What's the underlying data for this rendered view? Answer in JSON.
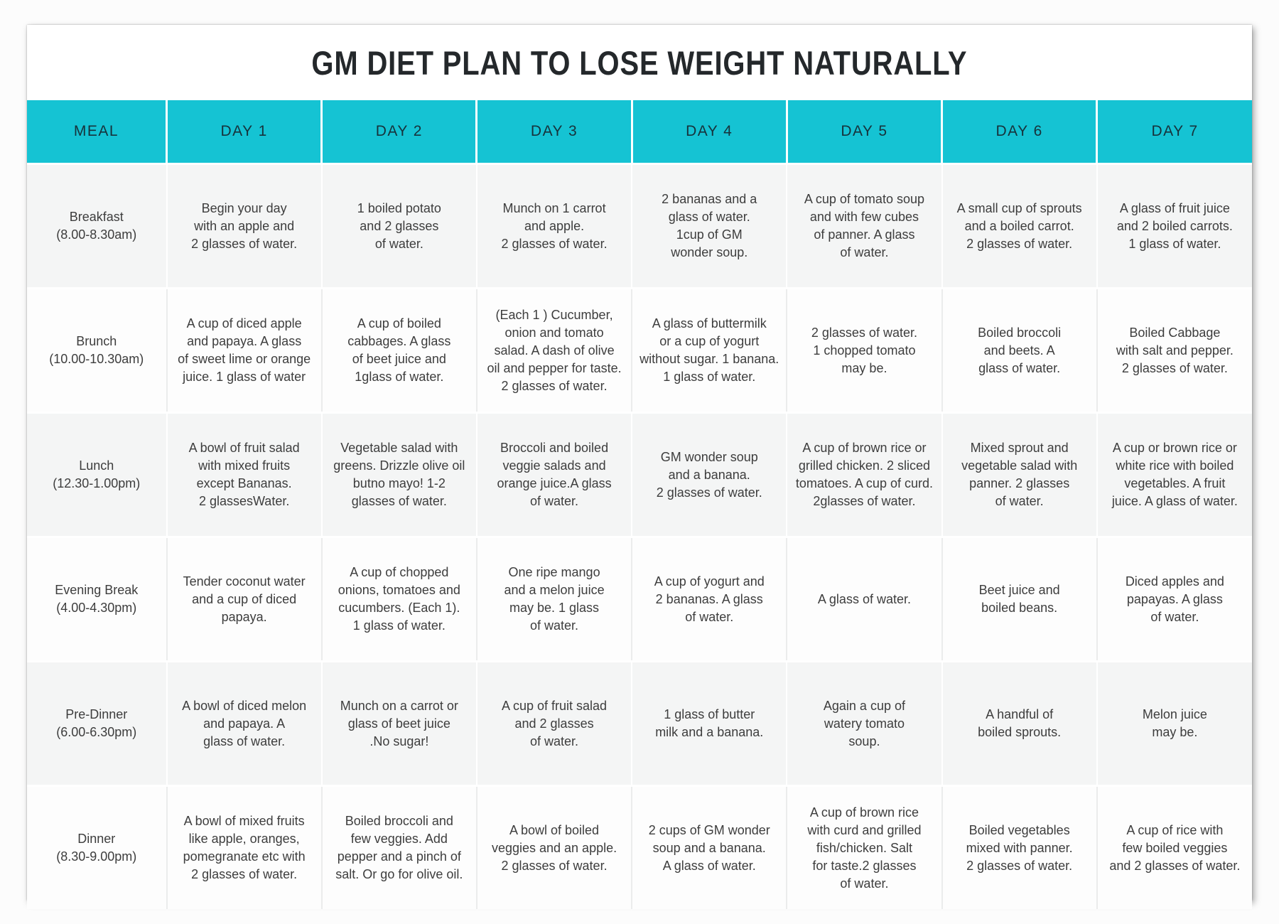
{
  "title": "GM DIET PLAN TO LOSE WEIGHT NATURALLY",
  "colors": {
    "header_bg": "#15c3d3",
    "row_alt_bg": "#f4f5f5",
    "title_text": "#24282b",
    "body_text": "#3d3d3d"
  },
  "table": {
    "columns": [
      "MEAL",
      "DAY 1",
      "DAY 2",
      "DAY 3",
      "DAY 4",
      "DAY 5",
      "DAY 6",
      "DAY 7"
    ],
    "rows": [
      {
        "meal": "Breakfast",
        "time": "(8.00-8.30am)",
        "cells": [
          "Begin your day\nwith an apple and\n2 glasses of water.",
          "1 boiled potato\nand 2 glasses\nof water.",
          "Munch on 1 carrot\nand apple.\n2 glasses of water.",
          "2 bananas and a\nglass of water.\n1cup of GM\nwonder soup.",
          "A cup of tomato soup\nand with few cubes\nof panner. A glass\nof water.",
          "A small cup of sprouts\nand a boiled carrot.\n2 glasses of water.",
          "A glass of fruit juice\nand 2 boiled carrots.\n1 glass of water."
        ]
      },
      {
        "meal": "Brunch",
        "time": "(10.00-10.30am)",
        "cells": [
          "A cup of diced apple\nand papaya. A glass\nof sweet lime or orange\njuice. 1 glass of water",
          "A cup of boiled\ncabbages. A glass\nof beet juice and\n1glass of water.",
          "(Each 1 ) Cucumber,\nonion and tomato\nsalad. A dash of olive\noil and pepper for taste.\n2 glasses of water.",
          "A glass of buttermilk\nor a cup of yogurt\nwithout sugar. 1 banana.\n1 glass of water.",
          "2 glasses of water.\n1 chopped tomato\nmay be.",
          "Boiled broccoli\nand beets. A\nglass of water.",
          "Boiled Cabbage\nwith salt and pepper.\n2 glasses of water."
        ]
      },
      {
        "meal": "Lunch",
        "time": "(12.30-1.00pm)",
        "cells": [
          "A bowl of fruit salad\nwith mixed fruits\nexcept Bananas.\n2 glassesWater.",
          "Vegetable salad with\ngreens. Drizzle olive oil\nbutno mayo! 1-2\nglasses of water.",
          "Broccoli and boiled\nveggie salads and\norange juice.A glass\nof water.",
          "GM wonder soup\nand a banana.\n2 glasses of water.",
          "A cup of brown rice or\ngrilled chicken. 2 sliced\ntomatoes. A cup of curd.\n2glasses of water.",
          "Mixed sprout and\nvegetable salad with\npanner. 2 glasses\nof water.",
          "A cup or brown rice or\nwhite rice with boiled\nvegetables. A fruit\njuice. A glass of water."
        ]
      },
      {
        "meal": "Evening Break",
        "time": "(4.00-4.30pm)",
        "cells": [
          "Tender coconut water\nand a cup of diced\npapaya.",
          "A cup of chopped\nonions, tomatoes and\ncucumbers. (Each 1).\n1 glass of water.",
          "One ripe mango\nand a melon juice\nmay be. 1 glass\nof water.",
          "A cup of yogurt and\n2 bananas. A glass\nof water.",
          "A glass of water.",
          "Beet juice and\nboiled beans.",
          "Diced apples and\npapayas. A glass\nof water."
        ]
      },
      {
        "meal": "Pre-Dinner",
        "time": "(6.00-6.30pm)",
        "cells": [
          "A bowl of diced melon\nand papaya. A\nglass of water.",
          "Munch on a carrot or\nglass of beet juice\n.No sugar!",
          "A cup of fruit salad\nand 2 glasses\nof water.",
          "1 glass of butter\nmilk and a banana.",
          "Again a cup of\nwatery tomato\nsoup.",
          "A handful of\nboiled sprouts.",
          "Melon juice\nmay be."
        ]
      },
      {
        "meal": "Dinner",
        "time": "(8.30-9.00pm)",
        "cells": [
          "A bowl of mixed fruits\nlike apple, oranges,\npomegranate etc with\n2 glasses of water.",
          "Boiled broccoli and\nfew veggies. Add\npepper and a pinch of\nsalt. Or go for olive oil.",
          "A bowl of boiled\nveggies and an apple.\n2 glasses of water.",
          "2 cups of GM wonder\nsoup and a banana.\nA glass of water.",
          "A cup of brown rice\nwith curd and grilled\nfish/chicken. Salt\nfor taste.2 glasses\nof water.",
          "Boiled vegetables\nmixed with panner.\n2 glasses of water.",
          "A cup of rice with\nfew boiled veggies\nand 2 glasses of water."
        ]
      }
    ]
  }
}
